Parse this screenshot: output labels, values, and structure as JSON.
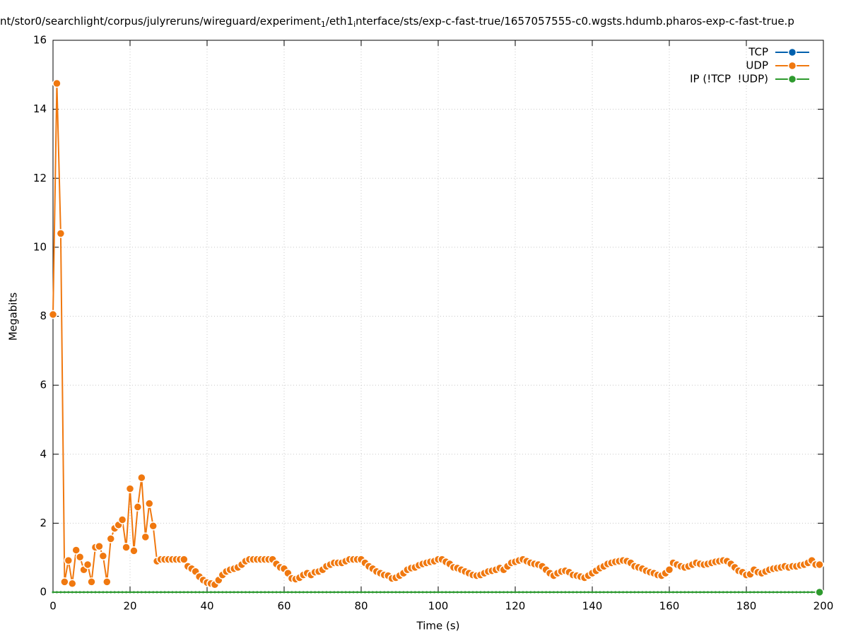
{
  "chart_data": {
    "type": "line",
    "title_parts": [
      "nt/stor0/searchlight/corpus/julyreruns/wireguard/experiment",
      "1",
      "/eth1",
      "i",
      "nterface/sts/exp-c-fast-true/1657057555-c0.wgsts.hdumb.pharos-exp-c-fast-true.p"
    ],
    "x_label": "Time (s)",
    "y_label": "Megabits",
    "xlim": [
      0,
      200
    ],
    "xticks": [
      0,
      20,
      40,
      60,
      80,
      100,
      120,
      140,
      160,
      180,
      200
    ],
    "ylim": [
      0,
      16
    ],
    "yticks": [
      0,
      2,
      4,
      6,
      8,
      10,
      12,
      14,
      16
    ],
    "grid": true,
    "legend": "top-right",
    "x": [
      0,
      1,
      2,
      3,
      4,
      5,
      6,
      7,
      8,
      9,
      10,
      11,
      12,
      13,
      14,
      15,
      16,
      17,
      18,
      19,
      20,
      21,
      22,
      23,
      24,
      25,
      26,
      27,
      28,
      29,
      30,
      31,
      32,
      33,
      34,
      35,
      36,
      37,
      38,
      39,
      40,
      41,
      42,
      43,
      44,
      45,
      46,
      47,
      48,
      49,
      50,
      51,
      52,
      53,
      54,
      55,
      56,
      57,
      58,
      59,
      60,
      61,
      62,
      63,
      64,
      65,
      66,
      67,
      68,
      69,
      70,
      71,
      72,
      73,
      74,
      75,
      76,
      77,
      78,
      79,
      80,
      81,
      82,
      83,
      84,
      85,
      86,
      87,
      88,
      89,
      90,
      91,
      92,
      93,
      94,
      95,
      96,
      97,
      98,
      99,
      100,
      101,
      102,
      103,
      104,
      105,
      106,
      107,
      108,
      109,
      110,
      111,
      112,
      113,
      114,
      115,
      116,
      117,
      118,
      119,
      120,
      121,
      122,
      123,
      124,
      125,
      126,
      127,
      128,
      129,
      130,
      131,
      132,
      133,
      134,
      135,
      136,
      137,
      138,
      139,
      140,
      141,
      142,
      143,
      144,
      145,
      146,
      147,
      148,
      149,
      150,
      151,
      152,
      153,
      154,
      155,
      156,
      157,
      158,
      159,
      160,
      161,
      162,
      163,
      164,
      165,
      166,
      167,
      168,
      169,
      170,
      171,
      172,
      173,
      174,
      175,
      176,
      177,
      178,
      179,
      180,
      181,
      182,
      183,
      184,
      185,
      186,
      187,
      188,
      189,
      190,
      191,
      192,
      193,
      194,
      195,
      196,
      197,
      198,
      199
    ],
    "series": [
      {
        "name": "TCP",
        "color": "#0060ad",
        "values": [
          0,
          0,
          0,
          0,
          0,
          0,
          0,
          0,
          0,
          0,
          0,
          0,
          0,
          0,
          0,
          0,
          0,
          0,
          0,
          0,
          0,
          0,
          0,
          0,
          0,
          0,
          0,
          0,
          0,
          0,
          0,
          0,
          0,
          0,
          0,
          0,
          0,
          0,
          0,
          0,
          0,
          0,
          0,
          0,
          0,
          0,
          0,
          0,
          0,
          0,
          0,
          0,
          0,
          0,
          0,
          0,
          0,
          0,
          0,
          0,
          0,
          0,
          0,
          0,
          0,
          0,
          0,
          0,
          0,
          0,
          0,
          0,
          0,
          0,
          0,
          0,
          0,
          0,
          0,
          0,
          0,
          0,
          0,
          0,
          0,
          0,
          0,
          0,
          0,
          0,
          0,
          0,
          0,
          0,
          0,
          0,
          0,
          0,
          0,
          0,
          0,
          0,
          0,
          0,
          0,
          0,
          0,
          0,
          0,
          0,
          0,
          0,
          0,
          0,
          0,
          0,
          0,
          0,
          0,
          0,
          0,
          0,
          0,
          0,
          0,
          0,
          0,
          0,
          0,
          0,
          0,
          0,
          0,
          0,
          0,
          0,
          0,
          0,
          0,
          0,
          0,
          0,
          0,
          0,
          0,
          0,
          0,
          0,
          0,
          0,
          0,
          0,
          0,
          0,
          0,
          0,
          0,
          0,
          0,
          0,
          0,
          0,
          0,
          0,
          0,
          0,
          0,
          0,
          0,
          0,
          0,
          0,
          0,
          0,
          0,
          0,
          0,
          0,
          0,
          0,
          0,
          0,
          0,
          0,
          0,
          0,
          0,
          0,
          0,
          0,
          0,
          0,
          0,
          0,
          0,
          0,
          0,
          0,
          0,
          0
        ]
      },
      {
        "name": "UDP",
        "color": "#f0780f",
        "values": [
          8.05,
          14.75,
          10.4,
          0.3,
          0.92,
          0.25,
          1.22,
          1.02,
          0.65,
          0.8,
          0.3,
          1.3,
          1.33,
          1.05,
          0.3,
          1.55,
          1.85,
          1.95,
          2.1,
          1.3,
          3.0,
          1.2,
          2.47,
          3.32,
          1.6,
          2.57,
          1.92,
          0.9,
          0.95,
          0.95,
          0.95,
          0.95,
          0.95,
          0.95,
          0.95,
          0.75,
          0.68,
          0.6,
          0.45,
          0.35,
          0.28,
          0.25,
          0.22,
          0.35,
          0.5,
          0.6,
          0.65,
          0.68,
          0.72,
          0.8,
          0.9,
          0.95,
          0.95,
          0.95,
          0.95,
          0.95,
          0.95,
          0.95,
          0.82,
          0.72,
          0.68,
          0.55,
          0.4,
          0.38,
          0.42,
          0.5,
          0.55,
          0.5,
          0.58,
          0.6,
          0.65,
          0.75,
          0.8,
          0.85,
          0.85,
          0.85,
          0.9,
          0.95,
          0.95,
          0.95,
          0.95,
          0.85,
          0.75,
          0.68,
          0.6,
          0.55,
          0.5,
          0.48,
          0.4,
          0.42,
          0.48,
          0.55,
          0.65,
          0.7,
          0.72,
          0.78,
          0.82,
          0.85,
          0.88,
          0.9,
          0.95,
          0.95,
          0.88,
          0.82,
          0.72,
          0.7,
          0.65,
          0.6,
          0.55,
          0.5,
          0.48,
          0.5,
          0.55,
          0.6,
          0.62,
          0.65,
          0.7,
          0.65,
          0.75,
          0.85,
          0.88,
          0.92,
          0.95,
          0.9,
          0.85,
          0.82,
          0.8,
          0.75,
          0.65,
          0.55,
          0.48,
          0.55,
          0.6,
          0.62,
          0.58,
          0.5,
          0.48,
          0.45,
          0.42,
          0.48,
          0.55,
          0.62,
          0.7,
          0.75,
          0.82,
          0.85,
          0.88,
          0.9,
          0.92,
          0.9,
          0.85,
          0.75,
          0.72,
          0.68,
          0.62,
          0.58,
          0.55,
          0.5,
          0.48,
          0.55,
          0.65,
          0.85,
          0.8,
          0.75,
          0.72,
          0.75,
          0.8,
          0.85,
          0.82,
          0.8,
          0.82,
          0.85,
          0.88,
          0.9,
          0.92,
          0.9,
          0.82,
          0.72,
          0.62,
          0.58,
          0.5,
          0.52,
          0.65,
          0.58,
          0.55,
          0.6,
          0.65,
          0.68,
          0.7,
          0.72,
          0.75,
          0.72,
          0.75,
          0.75,
          0.78,
          0.8,
          0.85,
          0.92,
          0.8,
          0.8
        ]
      },
      {
        "name": "IP (!TCP  !UDP)",
        "color": "#2e9a2e",
        "values": [
          0,
          0,
          0,
          0,
          0,
          0,
          0,
          0,
          0,
          0,
          0,
          0,
          0,
          0,
          0,
          0,
          0,
          0,
          0,
          0,
          0,
          0,
          0,
          0,
          0,
          0,
          0,
          0,
          0,
          0,
          0,
          0,
          0,
          0,
          0,
          0,
          0,
          0,
          0,
          0,
          0,
          0,
          0,
          0,
          0,
          0,
          0,
          0,
          0,
          0,
          0,
          0,
          0,
          0,
          0,
          0,
          0,
          0,
          0,
          0,
          0,
          0,
          0,
          0,
          0,
          0,
          0,
          0,
          0,
          0,
          0,
          0,
          0,
          0,
          0,
          0,
          0,
          0,
          0,
          0,
          0,
          0,
          0,
          0,
          0,
          0,
          0,
          0,
          0,
          0,
          0,
          0,
          0,
          0,
          0,
          0,
          0,
          0,
          0,
          0,
          0,
          0,
          0,
          0,
          0,
          0,
          0,
          0,
          0,
          0,
          0,
          0,
          0,
          0,
          0,
          0,
          0,
          0,
          0,
          0,
          0,
          0,
          0,
          0,
          0,
          0,
          0,
          0,
          0,
          0,
          0,
          0,
          0,
          0,
          0,
          0,
          0,
          0,
          0,
          0,
          0,
          0,
          0,
          0,
          0,
          0,
          0,
          0,
          0,
          0,
          0,
          0,
          0,
          0,
          0,
          0,
          0,
          0,
          0,
          0,
          0,
          0,
          0,
          0,
          0,
          0,
          0,
          0,
          0,
          0,
          0,
          0,
          0,
          0,
          0,
          0,
          0,
          0,
          0,
          0,
          0,
          0,
          0,
          0,
          0,
          0,
          0,
          0,
          0,
          0,
          0,
          0,
          0,
          0,
          0,
          0,
          0,
          0,
          0,
          0
        ]
      }
    ]
  }
}
